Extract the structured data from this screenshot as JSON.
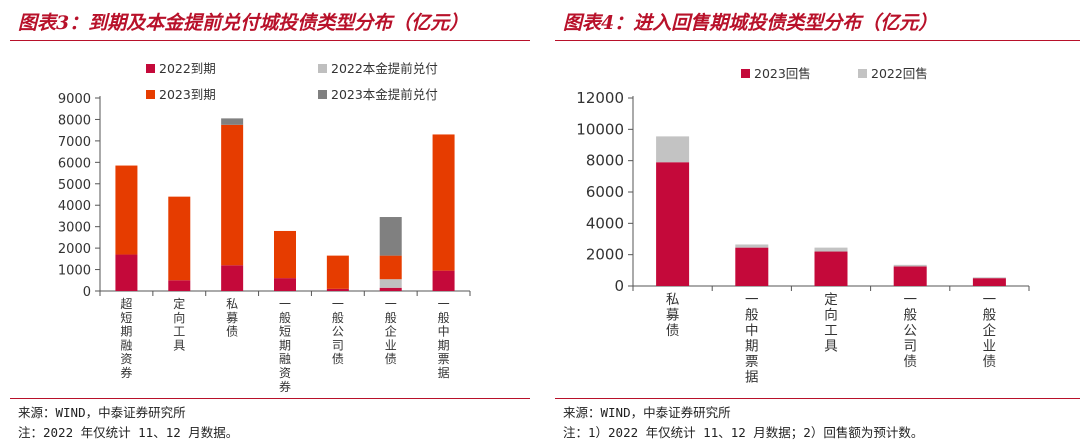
{
  "colors": {
    "accent": "#b8112a",
    "c2022": "#c4093a",
    "c2022early": "#bfbfbf",
    "c2023": "#e63c00",
    "c2023early": "#808080",
    "rRed": "#c4093a",
    "rGray": "#c3c3c3"
  },
  "left": {
    "title": "图表3：到期及本金提前兑付城投债类型分布（亿元）",
    "source": "来源：WIND，中泰证券研究所",
    "note": "注：2022 年仅统计 11、12 月数据。"
  },
  "right": {
    "title": "图表4：进入回售期城投债类型分布（亿元）",
    "source": "来源：WIND，中泰证券研究所",
    "note": "注：1）2022 年仅统计 11、12 月数据；2）回售额为预计数。"
  },
  "chart_data": [
    {
      "type": "bar",
      "stacked": true,
      "categories": [
        "超短期融资券",
        "定向工具",
        "私募债",
        "一般短期融资券",
        "一般公司债",
        "一般企业债",
        "一般中期票据"
      ],
      "series": [
        {
          "name": "2022到期",
          "values": [
            1700,
            500,
            1200,
            600,
            100,
            150,
            950
          ]
        },
        {
          "name": "2022本金提前兑付",
          "values": [
            0,
            0,
            0,
            0,
            0,
            400,
            0
          ]
        },
        {
          "name": "2023到期",
          "values": [
            4150,
            3900,
            6550,
            2200,
            1550,
            1100,
            6350
          ]
        },
        {
          "name": "2023本金提前兑付",
          "values": [
            0,
            0,
            300,
            0,
            0,
            1800,
            0
          ]
        }
      ],
      "yticks": [
        "0",
        "1000",
        "2000",
        "3000",
        "4000",
        "5000",
        "6000",
        "7000",
        "8000",
        "9000"
      ],
      "ylim": [
        0,
        9000
      ],
      "legend": [
        "2022到期",
        "2022本金提前兑付",
        "2023到期",
        "2023本金提前兑付"
      ]
    },
    {
      "type": "bar",
      "stacked": true,
      "categories": [
        "私募债",
        "一般中期票据",
        "定向工具",
        "一般公司债",
        "一般企业债"
      ],
      "series": [
        {
          "name": "2023回售",
          "values": [
            7900,
            2450,
            2200,
            1250,
            500
          ]
        },
        {
          "name": "2022回售",
          "values": [
            1650,
            200,
            250,
            100,
            50
          ]
        }
      ],
      "yticks": [
        "0",
        "2000",
        "4000",
        "6000",
        "8000",
        "10000",
        "12000"
      ],
      "ylim": [
        0,
        12000
      ],
      "legend": [
        "2023回售",
        "2022回售"
      ]
    }
  ]
}
